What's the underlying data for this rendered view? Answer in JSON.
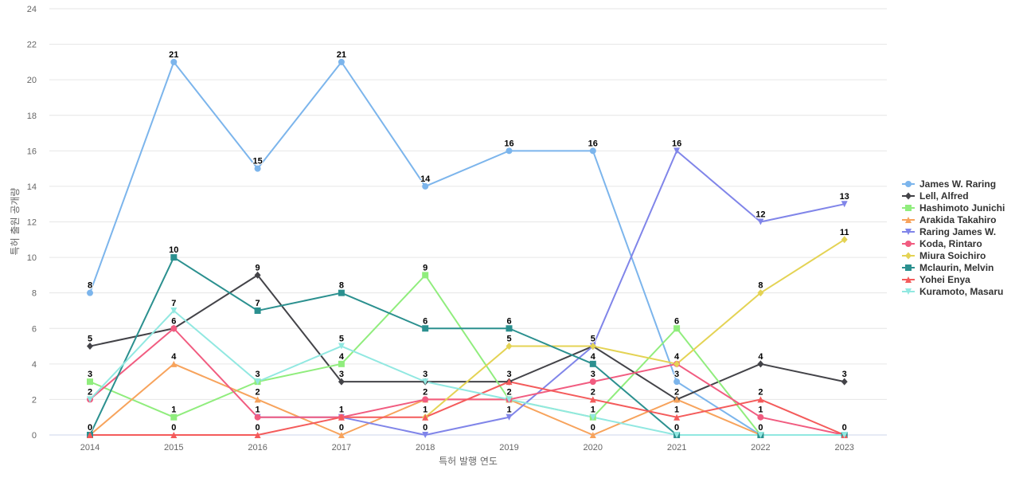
{
  "chart_data": {
    "type": "line",
    "title": "",
    "xlabel": "특허 발행 연도",
    "ylabel": "특허 출원 공개량",
    "x": [
      "2014",
      "2015",
      "2016",
      "2017",
      "2018",
      "2019",
      "2020",
      "2021",
      "2022",
      "2023"
    ],
    "ylim": [
      0,
      24
    ],
    "yticks": [
      0,
      2,
      4,
      6,
      8,
      10,
      12,
      14,
      16,
      18,
      20,
      22,
      24
    ],
    "grid": true,
    "legend_position": "right",
    "series": [
      {
        "name": "James W. Raring",
        "color": "#7cb5ec",
        "marker": "circle",
        "values": [
          8,
          21,
          15,
          21,
          14,
          16,
          16,
          3,
          0,
          null
        ]
      },
      {
        "name": "Lell, Alfred",
        "color": "#434348",
        "marker": "diamond",
        "values": [
          5,
          6,
          9,
          3,
          3,
          3,
          5,
          2,
          4,
          3
        ]
      },
      {
        "name": "Hashimoto Junichi",
        "color": "#90ed7d",
        "marker": "square",
        "values": [
          3,
          1,
          3,
          4,
          9,
          2,
          1,
          6,
          0,
          null
        ]
      },
      {
        "name": "Arakida Takahiro",
        "color": "#f7a35c",
        "marker": "triangle",
        "values": [
          0,
          4,
          2,
          0,
          2,
          2,
          0,
          2,
          0,
          null
        ]
      },
      {
        "name": "Raring James W.",
        "color": "#8085e9",
        "marker": "triangle-down",
        "values": [
          null,
          null,
          1,
          1,
          0,
          1,
          5,
          16,
          12,
          13
        ]
      },
      {
        "name": "Koda, Rintaro",
        "color": "#f15c80",
        "marker": "circle",
        "values": [
          2,
          6,
          1,
          1,
          2,
          2,
          3,
          4,
          1,
          0
        ]
      },
      {
        "name": "Miura Soichiro",
        "color": "#e4d354",
        "marker": "diamond",
        "values": [
          null,
          null,
          null,
          null,
          1,
          5,
          5,
          4,
          8,
          11
        ]
      },
      {
        "name": "Mclaurin, Melvin",
        "color": "#2b908f",
        "marker": "square",
        "values": [
          0,
          10,
          7,
          8,
          6,
          6,
          4,
          0,
          0,
          0
        ]
      },
      {
        "name": "Yohei Enya",
        "color": "#f45b5b",
        "marker": "triangle",
        "values": [
          0,
          0,
          0,
          1,
          1,
          3,
          2,
          1,
          2,
          0
        ]
      },
      {
        "name": "Kuramoto, Masaru",
        "color": "#91e8e1",
        "marker": "triangle-down",
        "values": [
          2,
          7,
          3,
          5,
          3,
          2,
          1,
          0,
          0,
          0
        ]
      }
    ],
    "data_labels": [
      {
        "x": "2014",
        "value": 8
      },
      {
        "x": "2014",
        "value": 5
      },
      {
        "x": "2014",
        "value": 3
      },
      {
        "x": "2014",
        "value": 2
      },
      {
        "x": "2014",
        "value": 0
      },
      {
        "x": "2015",
        "value": 21
      },
      {
        "x": "2015",
        "value": 10
      },
      {
        "x": "2015",
        "value": 7
      },
      {
        "x": "2015",
        "value": 6
      },
      {
        "x": "2015",
        "value": 4
      },
      {
        "x": "2015",
        "value": 1
      },
      {
        "x": "2015",
        "value": 0
      },
      {
        "x": "2016",
        "value": 15
      },
      {
        "x": "2016",
        "value": 9
      },
      {
        "x": "2016",
        "value": 7
      },
      {
        "x": "2016",
        "value": 3
      },
      {
        "x": "2016",
        "value": 2
      },
      {
        "x": "2016",
        "value": 1
      },
      {
        "x": "2016",
        "value": 0
      },
      {
        "x": "2017",
        "value": 21
      },
      {
        "x": "2017",
        "value": 8
      },
      {
        "x": "2017",
        "value": 5
      },
      {
        "x": "2017",
        "value": 4
      },
      {
        "x": "2017",
        "value": 3
      },
      {
        "x": "2017",
        "value": 1
      },
      {
        "x": "2017",
        "value": 0
      },
      {
        "x": "2018",
        "value": 14
      },
      {
        "x": "2018",
        "value": 9
      },
      {
        "x": "2018",
        "value": 6
      },
      {
        "x": "2018",
        "value": 3
      },
      {
        "x": "2018",
        "value": 2
      },
      {
        "x": "2018",
        "value": 1
      },
      {
        "x": "2018",
        "value": 0
      },
      {
        "x": "2019",
        "value": 16
      },
      {
        "x": "2019",
        "value": 6
      },
      {
        "x": "2019",
        "value": 5
      },
      {
        "x": "2019",
        "value": 3
      },
      {
        "x": "2019",
        "value": 2
      },
      {
        "x": "2019",
        "value": 1
      },
      {
        "x": "2020",
        "value": 16
      },
      {
        "x": "2020",
        "value": 5
      },
      {
        "x": "2020",
        "value": 4
      },
      {
        "x": "2020",
        "value": 3
      },
      {
        "x": "2020",
        "value": 2
      },
      {
        "x": "2020",
        "value": 1
      },
      {
        "x": "2020",
        "value": 0
      },
      {
        "x": "2021",
        "value": 16
      },
      {
        "x": "2021",
        "value": 6
      },
      {
        "x": "2021",
        "value": 4
      },
      {
        "x": "2021",
        "value": 3
      },
      {
        "x": "2021",
        "value": 2
      },
      {
        "x": "2021",
        "value": 1
      },
      {
        "x": "2021",
        "value": 0
      },
      {
        "x": "2022",
        "value": 12
      },
      {
        "x": "2022",
        "value": 8
      },
      {
        "x": "2022",
        "value": 4
      },
      {
        "x": "2022",
        "value": 2
      },
      {
        "x": "2022",
        "value": 1
      },
      {
        "x": "2022",
        "value": 0
      },
      {
        "x": "2023",
        "value": 13
      },
      {
        "x": "2023",
        "value": 11
      },
      {
        "x": "2023",
        "value": 3
      },
      {
        "x": "2023",
        "value": 0
      }
    ]
  }
}
